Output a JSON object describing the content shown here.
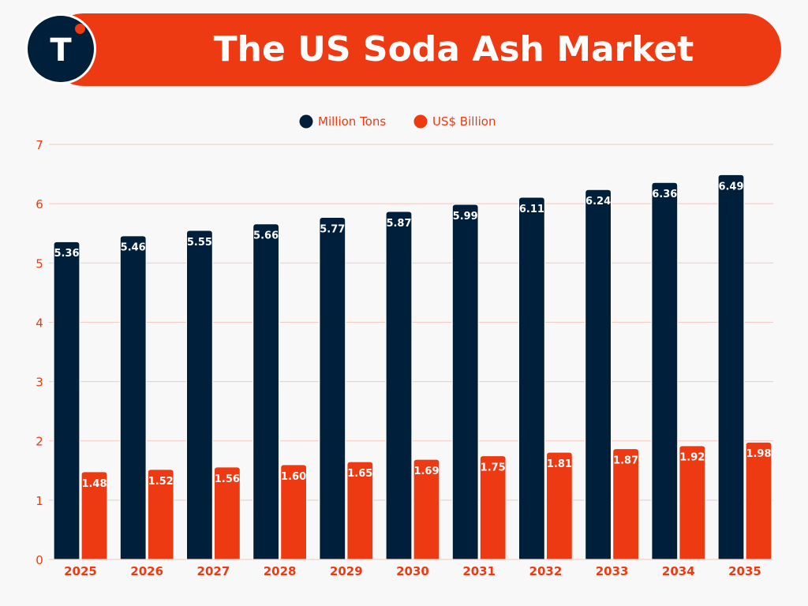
{
  "header": {
    "title": "The US Soda Ash Market",
    "logo_letter": "T"
  },
  "colors": {
    "navy": "#001f3a",
    "orange": "#ee3a12",
    "grid": "#f2c8bd",
    "background": "#f8f8f8"
  },
  "chart_data": {
    "type": "bar",
    "categories": [
      "2025",
      "2026",
      "2027",
      "2028",
      "2029",
      "2030",
      "2031",
      "2032",
      "2033",
      "2034",
      "2035"
    ],
    "series": [
      {
        "name": "Million Tons",
        "color": "#001f3a",
        "values": [
          5.36,
          5.46,
          5.55,
          5.66,
          5.77,
          5.87,
          5.99,
          6.11,
          6.24,
          6.36,
          6.49
        ],
        "labels": [
          "5.36",
          "5.46",
          "5.55",
          "5.66",
          "5.77",
          "5.87",
          "5.99",
          "6.11",
          "6.24",
          "6.36",
          "6.49"
        ]
      },
      {
        "name": "US$ Billion",
        "color": "#ee3a12",
        "values": [
          1.48,
          1.52,
          1.56,
          1.6,
          1.65,
          1.69,
          1.75,
          1.81,
          1.87,
          1.92,
          1.98
        ],
        "labels": [
          "1.48",
          "1.52",
          "1.56",
          "1.60",
          "1.65",
          "1.69",
          "1.75",
          "1.81",
          "1.87",
          "1.92",
          "1.98"
        ]
      }
    ],
    "ylim": [
      0,
      7
    ],
    "yticks": [
      "0",
      "1",
      "2",
      "3",
      "4",
      "5",
      "6",
      "7"
    ],
    "grid": true,
    "legend_position": "top-center"
  }
}
